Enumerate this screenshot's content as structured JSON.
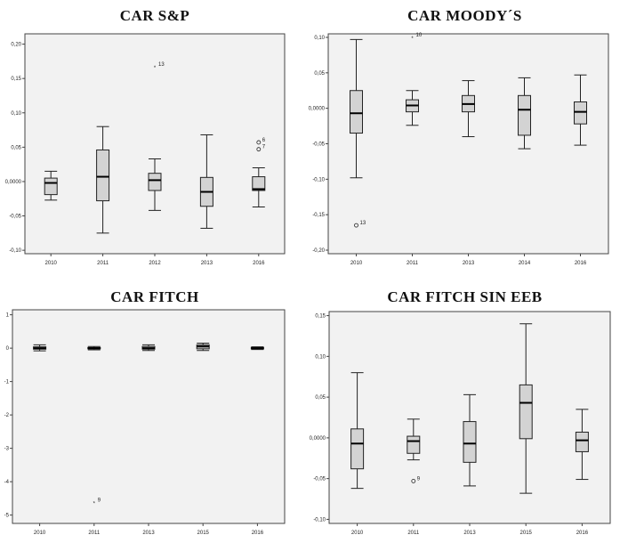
{
  "chart_data": [
    {
      "type": "box",
      "title": "CAR S&P",
      "xlabel": "",
      "ylabel": "",
      "ylim": [
        -0.105,
        0.215
      ],
      "yticks": [
        -0.1,
        -0.05,
        0.0,
        0.05,
        0.1,
        0.15,
        0.2
      ],
      "ytick_labels": [
        "-0,10",
        "-0,05",
        "0,0000",
        "0,05",
        "0,10",
        "0,15",
        "0,20"
      ],
      "categories": [
        "2010",
        "2011",
        "2012",
        "2013",
        "2016"
      ],
      "boxes": [
        {
          "min": -0.027,
          "q1": -0.019,
          "median": -0.002,
          "q3": 0.005,
          "max": 0.015
        },
        {
          "min": -0.075,
          "q1": -0.028,
          "median": 0.007,
          "q3": 0.046,
          "max": 0.08
        },
        {
          "min": -0.042,
          "q1": -0.013,
          "median": 0.002,
          "q3": 0.012,
          "max": 0.033
        },
        {
          "min": -0.068,
          "q1": -0.036,
          "median": -0.015,
          "q3": 0.006,
          "max": 0.068
        },
        {
          "min": -0.037,
          "q1": -0.013,
          "median": -0.011,
          "q3": 0.007,
          "max": 0.02
        }
      ],
      "outliers": [
        {
          "category": "2012",
          "value": 0.167,
          "label": "13",
          "marker": "*"
        },
        {
          "category": "2016",
          "value": 0.057,
          "label": "6",
          "marker": "o"
        },
        {
          "category": "2016",
          "value": 0.047,
          "label": "7",
          "marker": "o"
        }
      ]
    },
    {
      "type": "box",
      "title": "CAR MOODY´S",
      "xlabel": "",
      "ylabel": "",
      "ylim": [
        -0.205,
        0.105
      ],
      "yticks": [
        -0.2,
        -0.15,
        -0.1,
        -0.05,
        0.0,
        0.05,
        0.1
      ],
      "ytick_labels": [
        "-0,20",
        "-0,15",
        "-0,10",
        "-0,05",
        "0,0000",
        "0,05",
        "0,10"
      ],
      "categories": [
        "2010",
        "2011",
        "2013",
        "2014",
        "2016"
      ],
      "boxes": [
        {
          "min": -0.098,
          "q1": -0.035,
          "median": -0.007,
          "q3": 0.025,
          "max": 0.097
        },
        {
          "min": -0.024,
          "q1": -0.005,
          "median": 0.004,
          "q3": 0.012,
          "max": 0.025
        },
        {
          "min": -0.04,
          "q1": -0.005,
          "median": 0.006,
          "q3": 0.018,
          "max": 0.039
        },
        {
          "min": -0.057,
          "q1": -0.038,
          "median": -0.002,
          "q3": 0.018,
          "max": 0.043
        },
        {
          "min": -0.052,
          "q1": -0.022,
          "median": -0.005,
          "q3": 0.009,
          "max": 0.047
        }
      ],
      "outliers": [
        {
          "category": "2010",
          "value": -0.165,
          "label": "13",
          "marker": "o"
        },
        {
          "category": "2011",
          "value": 0.1,
          "label": "10",
          "marker": "*"
        }
      ]
    },
    {
      "type": "box",
      "title": "CAR FITCH",
      "xlabel": "",
      "ylabel": "",
      "ylim": [
        -5.25,
        1.15
      ],
      "yticks": [
        -5,
        -4,
        -3,
        -2,
        -1,
        0,
        1
      ],
      "ytick_labels": [
        "-5",
        "-4",
        "-3",
        "-2",
        "-1",
        "0",
        "1"
      ],
      "categories": [
        "2010",
        "2011",
        "2013",
        "2015",
        "2016"
      ],
      "boxes": [
        {
          "min": -0.08,
          "q1": -0.03,
          "median": 0.0,
          "q3": 0.04,
          "max": 0.1
        },
        {
          "min": -0.05,
          "q1": -0.02,
          "median": 0.0,
          "q3": 0.02,
          "max": 0.05
        },
        {
          "min": -0.07,
          "q1": -0.03,
          "median": 0.0,
          "q3": 0.05,
          "max": 0.1
        },
        {
          "min": -0.07,
          "q1": -0.02,
          "median": 0.05,
          "q3": 0.1,
          "max": 0.15
        },
        {
          "min": -0.04,
          "q1": -0.02,
          "median": 0.0,
          "q3": 0.02,
          "max": 0.04
        }
      ],
      "outliers": [
        {
          "category": "2011",
          "value": -4.62,
          "label": "9",
          "marker": "*"
        }
      ]
    },
    {
      "type": "box",
      "title": "CAR FITCH SIN EEB",
      "xlabel": "",
      "ylabel": "",
      "ylim": [
        -0.105,
        0.155
      ],
      "yticks": [
        -0.1,
        -0.05,
        0.0,
        0.05,
        0.1,
        0.15
      ],
      "ytick_labels": [
        "-0,10",
        "-0,05",
        "0,0000",
        "0,05",
        "0,10",
        "0,15"
      ],
      "categories": [
        "2010",
        "2011",
        "2013",
        "2015",
        "2016"
      ],
      "boxes": [
        {
          "min": -0.062,
          "q1": -0.038,
          "median": -0.007,
          "q3": 0.011,
          "max": 0.08
        },
        {
          "min": -0.027,
          "q1": -0.019,
          "median": -0.004,
          "q3": 0.002,
          "max": 0.023
        },
        {
          "min": -0.059,
          "q1": -0.03,
          "median": -0.007,
          "q3": 0.02,
          "max": 0.053
        },
        {
          "min": -0.068,
          "q1": -0.001,
          "median": 0.043,
          "q3": 0.065,
          "max": 0.14
        },
        {
          "min": -0.051,
          "q1": -0.017,
          "median": -0.003,
          "q3": 0.007,
          "max": 0.035
        }
      ],
      "outliers": [
        {
          "category": "2011",
          "value": -0.053,
          "label": "9",
          "marker": "o"
        }
      ]
    }
  ]
}
